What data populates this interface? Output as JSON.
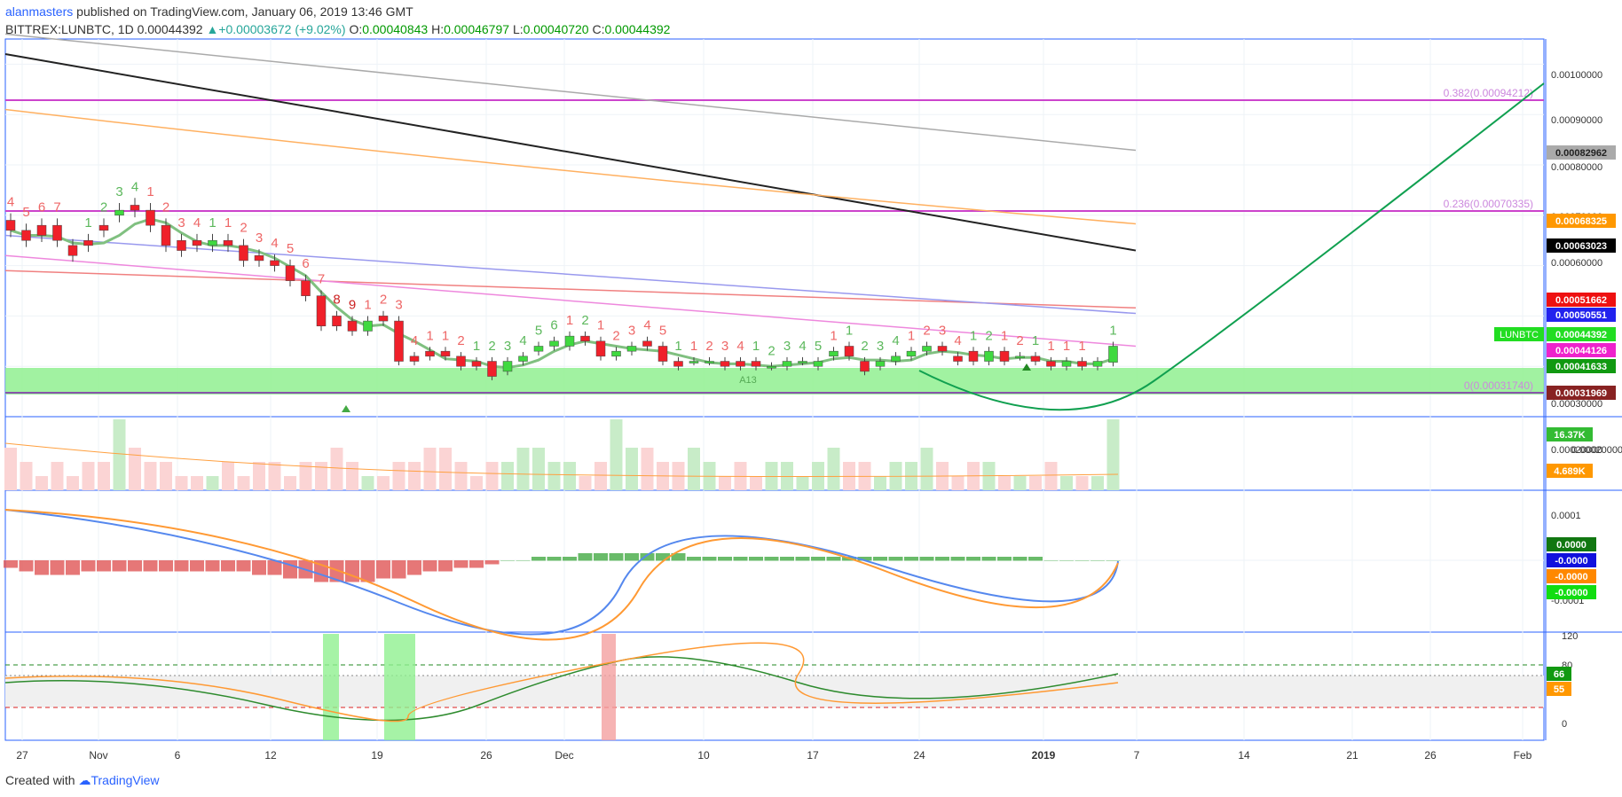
{
  "header": {
    "publisher_user": "alanmasters",
    "publisher_text": " published on TradingView.com, January 06, 2019 13:46 GMT",
    "symbol": "BITTREX:LUNBTC, 1D",
    "price": "0.00044392",
    "change": "+0.00003672 (+9.02%)",
    "o_label": "O:",
    "o_value": "0.00040843",
    "h_label": "H:",
    "h_value": "0.00046797",
    "l_label": "L:",
    "l_value": "0.00040720",
    "c_label": "C:",
    "c_value": "0.00044392"
  },
  "footer": {
    "created_with": "Created with",
    "brand": "TradingView"
  },
  "colors": {
    "up": "#3fd93f",
    "down": "#f0202a",
    "ma_green": "#80c080",
    "ma_orange": "#ffb060",
    "ma_black": "#222222",
    "ma_gray": "#aaaaaa",
    "ma_red": "#f08080",
    "fib": "#cc44cc",
    "support": "#90f090",
    "curve": "#10a050",
    "volume_up": "#c8ecc8",
    "volume_down": "#fbd4d4"
  },
  "chart_data": {
    "type": "candlestick",
    "x_tick_labels": [
      "27",
      "Nov",
      "6",
      "12",
      "19",
      "26",
      "Dec",
      "10",
      "17",
      "24",
      "2019",
      "7",
      "14",
      "21",
      "26",
      "Feb"
    ],
    "y_ticks": [
      "0.00100000",
      "0.00090000",
      "0.00080000",
      "0.00070000",
      "0.00060000",
      "0.00030000",
      "0.00020000"
    ],
    "ylim": [
      0.0003,
      0.00105
    ],
    "closes": [
      0.00067,
      0.00065,
      0.00066,
      0.00065,
      0.00062,
      0.00064,
      0.00067,
      0.00071,
      0.00071,
      0.00068,
      0.00064,
      0.00063,
      0.00064,
      0.00065,
      0.00064,
      0.00061,
      0.00061,
      0.0006,
      0.00057,
      0.00054,
      0.00048,
      0.00048,
      0.00047,
      0.00049,
      0.00049,
      0.00041,
      0.00041,
      0.00042,
      0.00042,
      0.0004,
      0.0004,
      0.00038,
      0.00041,
      0.00042,
      0.00044,
      0.00045,
      0.00046,
      0.00045,
      0.00042,
      0.00043,
      0.00044,
      0.00044,
      0.00041,
      0.0004,
      0.00041,
      0.00041,
      0.0004,
      0.0004,
      0.0004,
      0.0004,
      0.00041,
      0.00041,
      0.00041,
      0.00043,
      0.00042,
      0.00039,
      0.00041,
      0.00042,
      0.00043,
      0.00044,
      0.00043,
      0.00041,
      0.00041,
      0.00043,
      0.00041,
      0.00042,
      0.00041,
      0.0004,
      0.00041,
      0.0004,
      0.00041,
      0.00044
    ],
    "opens": [
      0.00069,
      0.00067,
      0.00068,
      0.00068,
      0.00064,
      0.00065,
      0.00068,
      0.0007,
      0.00072,
      0.00071,
      0.00068,
      0.00065,
      0.00065,
      0.00064,
      0.00065,
      0.00064,
      0.00062,
      0.00061,
      0.0006,
      0.00057,
      0.00054,
      0.0005,
      0.00049,
      0.00047,
      0.0005,
      0.00049,
      0.00042,
      0.00043,
      0.00043,
      0.00042,
      0.00041,
      0.00041,
      0.00039,
      0.00041,
      0.00043,
      0.00044,
      0.00044,
      0.00046,
      0.00045,
      0.00042,
      0.00043,
      0.00045,
      0.00044,
      0.00041,
      0.00041,
      0.00041,
      0.00041,
      0.00041,
      0.00041,
      0.0004,
      0.0004,
      0.00041,
      0.0004,
      0.00042,
      0.00044,
      0.00041,
      0.0004,
      0.00041,
      0.00042,
      0.00043,
      0.00044,
      0.00042,
      0.00043,
      0.00041,
      0.00043,
      0.00042,
      0.00042,
      0.00041,
      0.0004,
      0.00041,
      0.0004,
      0.000408
    ],
    "moving_averages": [
      {
        "color": "#aaaaaa",
        "start": 0.00106,
        "end": 0.000829
      },
      {
        "color": "#222222",
        "start": 0.00102,
        "end": 0.00063
      },
      {
        "color": "#ffb060",
        "start": 0.00091,
        "end": 0.000683
      },
      {
        "color": "#f08080",
        "start": 0.00059,
        "end": 0.000516
      },
      {
        "color": "#9999ee",
        "start": 0.00066,
        "end": 0.000505
      },
      {
        "color": "#ee88dd",
        "start": 0.00062,
        "end": 0.00044
      }
    ],
    "fib_levels": [
      {
        "label": "0.382(0.00094212)",
        "value": 0.00094212
      },
      {
        "label": "0.236(0.00070335)",
        "value": 0.00070335
      },
      {
        "label": "0(0.00031740)",
        "value": 0.0003174
      }
    ],
    "price_labels": [
      {
        "text": "0.00082962",
        "bg": "#aaaaaa",
        "fg": "#222222"
      },
      {
        "text": "0.00068325",
        "bg": "#ff9800",
        "fg": "#ffffff"
      },
      {
        "text": "0.00063023",
        "bg": "#000000",
        "fg": "#ffffff"
      },
      {
        "text": "0.00051662",
        "bg": "#ee1111",
        "fg": "#ffffff"
      },
      {
        "text": "0.00050551",
        "bg": "#2222ee",
        "fg": "#ffffff"
      },
      {
        "text": "0.00044392",
        "bg": "#22dd22",
        "fg": "#ffffff"
      },
      {
        "text": "0.00044126",
        "bg": "#ee22cc",
        "fg": "#ffffff"
      },
      {
        "text": "0.00041633",
        "bg": "#119911",
        "fg": "#ffffff"
      },
      {
        "text": "0.00031969",
        "bg": "#882222",
        "fg": "#ffffff"
      }
    ],
    "symbol_tag": "LUNBTC",
    "annotation": "A13",
    "td_counts": [
      {
        "i": 0,
        "t": "4",
        "c": "r",
        "above": true
      },
      {
        "i": 1,
        "t": "5",
        "c": "r",
        "above": true
      },
      {
        "i": 2,
        "t": "6",
        "c": "r",
        "above": true
      },
      {
        "i": 3,
        "t": "7",
        "c": "r",
        "above": true
      },
      {
        "i": 5,
        "t": "1",
        "c": "g",
        "above": true
      },
      {
        "i": 6,
        "t": "2",
        "c": "g",
        "above": true
      },
      {
        "i": 7,
        "t": "3",
        "c": "g",
        "above": true
      },
      {
        "i": 8,
        "t": "4",
        "c": "g",
        "above": true
      },
      {
        "i": 9,
        "t": "1",
        "c": "r",
        "above": true
      },
      {
        "i": 10,
        "t": "2",
        "c": "r",
        "above": true
      },
      {
        "i": 11,
        "t": "3",
        "c": "r",
        "above": true
      },
      {
        "i": 12,
        "t": "4",
        "c": "r",
        "above": true
      },
      {
        "i": 13,
        "t": "1",
        "c": "g",
        "above": true
      },
      {
        "i": 14,
        "t": "1",
        "c": "r",
        "above": true
      },
      {
        "i": 15,
        "t": "2",
        "c": "r",
        "above": true
      },
      {
        "i": 16,
        "t": "3",
        "c": "r",
        "above": true
      },
      {
        "i": 17,
        "t": "4",
        "c": "r",
        "above": true
      },
      {
        "i": 18,
        "t": "5",
        "c": "r",
        "above": true
      },
      {
        "i": 19,
        "t": "6",
        "c": "r",
        "above": true
      },
      {
        "i": 20,
        "t": "7",
        "c": "r",
        "above": true
      },
      {
        "i": 21,
        "t": "8",
        "c": "d",
        "above": true
      },
      {
        "i": 22,
        "t": "9",
        "c": "d",
        "above": true
      },
      {
        "i": 23,
        "t": "1",
        "c": "r",
        "above": true
      },
      {
        "i": 24,
        "t": "2",
        "c": "r",
        "above": true
      },
      {
        "i": 25,
        "t": "3",
        "c": "r",
        "above": true
      },
      {
        "i": 26,
        "t": "4",
        "c": "r",
        "above": true
      },
      {
        "i": 27,
        "t": "1",
        "c": "r",
        "above": true
      },
      {
        "i": 28,
        "t": "1",
        "c": "r",
        "above": true
      },
      {
        "i": 29,
        "t": "2",
        "c": "r",
        "above": true
      },
      {
        "i": 30,
        "t": "1",
        "c": "g",
        "above": true
      },
      {
        "i": 31,
        "t": "2",
        "c": "g",
        "above": true
      },
      {
        "i": 32,
        "t": "3",
        "c": "g",
        "above": true
      },
      {
        "i": 33,
        "t": "4",
        "c": "g",
        "above": true
      },
      {
        "i": 34,
        "t": "5",
        "c": "g",
        "above": true
      },
      {
        "i": 35,
        "t": "6",
        "c": "g",
        "above": true
      },
      {
        "i": 36,
        "t": "1",
        "c": "r",
        "above": true
      },
      {
        "i": 37,
        "t": "2",
        "c": "g",
        "above": true
      },
      {
        "i": 38,
        "t": "1",
        "c": "r",
        "above": true
      },
      {
        "i": 39,
        "t": "2",
        "c": "r",
        "above": true
      },
      {
        "i": 40,
        "t": "3",
        "c": "r",
        "above": true
      },
      {
        "i": 41,
        "t": "4",
        "c": "r",
        "above": true
      },
      {
        "i": 42,
        "t": "5",
        "c": "r",
        "above": true
      },
      {
        "i": 43,
        "t": "1",
        "c": "g",
        "above": true
      },
      {
        "i": 44,
        "t": "1",
        "c": "r",
        "above": true
      },
      {
        "i": 45,
        "t": "2",
        "c": "r",
        "above": true
      },
      {
        "i": 46,
        "t": "3",
        "c": "r",
        "above": true
      },
      {
        "i": 47,
        "t": "4",
        "c": "r",
        "above": true
      },
      {
        "i": 48,
        "t": "1",
        "c": "g",
        "above": true
      },
      {
        "i": 49,
        "t": "2",
        "c": "g",
        "above": true
      },
      {
        "i": 50,
        "t": "3",
        "c": "g",
        "above": true
      },
      {
        "i": 51,
        "t": "4",
        "c": "g",
        "above": true
      },
      {
        "i": 52,
        "t": "5",
        "c": "g",
        "above": true
      },
      {
        "i": 53,
        "t": "1",
        "c": "r",
        "above": true
      },
      {
        "i": 54,
        "t": "1",
        "c": "g",
        "above": true
      },
      {
        "i": 55,
        "t": "2",
        "c": "g",
        "above": true
      },
      {
        "i": 56,
        "t": "3",
        "c": "g",
        "above": true
      },
      {
        "i": 57,
        "t": "4",
        "c": "g",
        "above": true
      },
      {
        "i": 58,
        "t": "1",
        "c": "r",
        "above": true
      },
      {
        "i": 59,
        "t": "2",
        "c": "r",
        "above": true
      },
      {
        "i": 60,
        "t": "3",
        "c": "r",
        "above": true
      },
      {
        "i": 61,
        "t": "4",
        "c": "r",
        "above": true
      },
      {
        "i": 62,
        "t": "1",
        "c": "g",
        "above": true
      },
      {
        "i": 63,
        "t": "2",
        "c": "g",
        "above": true
      },
      {
        "i": 64,
        "t": "1",
        "c": "r",
        "above": true
      },
      {
        "i": 65,
        "t": "2",
        "c": "r",
        "above": true
      },
      {
        "i": 66,
        "t": "1",
        "c": "g",
        "above": true
      },
      {
        "i": 67,
        "t": "1",
        "c": "r",
        "above": true
      },
      {
        "i": 68,
        "t": "1",
        "c": "r",
        "above": true
      },
      {
        "i": 69,
        "t": "1",
        "c": "r",
        "above": true
      },
      {
        "i": 71,
        "t": "1",
        "c": "g",
        "above": true
      }
    ],
    "volume_tick_labels": [
      "16.37K",
      "4.689K"
    ],
    "volumes": [
      3,
      2,
      1,
      2,
      1,
      2,
      2,
      5,
      3,
      2,
      2,
      1,
      1,
      1,
      2,
      1,
      2,
      2,
      1,
      2,
      2,
      3,
      2,
      1,
      1,
      2,
      2,
      3,
      3,
      2,
      1,
      2,
      2,
      3,
      3,
      2,
      2,
      1,
      2,
      5,
      3,
      3,
      2,
      2,
      3,
      2,
      1,
      2,
      1,
      2,
      2,
      1,
      2,
      3,
      2,
      2,
      1,
      2,
      2,
      3,
      2,
      1,
      2,
      2,
      1,
      1,
      1,
      2,
      1,
      1,
      1,
      5
    ],
    "macd_ticks": [
      "0.0001",
      "-0.0001"
    ],
    "macd_labels": [
      {
        "text": "0.0000",
        "bg": "#117711"
      },
      {
        "text": "-0.0000",
        "bg": "#1111dd"
      },
      {
        "text": "-0.0000",
        "bg": "#ff8800"
      },
      {
        "text": "-0.0000",
        "bg": "#11dd11"
      }
    ],
    "macd_hist": [
      -2,
      -3,
      -4,
      -4,
      -4,
      -3,
      -3,
      -3,
      -3,
      -3,
      -3,
      -3,
      -3,
      -3,
      -3,
      -3,
      -4,
      -4,
      -5,
      -5,
      -6,
      -6,
      -6,
      -6,
      -5,
      -5,
      -4,
      -3,
      -3,
      -2,
      -2,
      -1,
      0,
      0,
      1,
      1,
      1,
      2,
      2,
      2,
      2,
      2,
      2,
      2,
      1,
      1,
      1,
      1,
      1,
      1,
      1,
      1,
      1,
      1,
      1,
      1,
      1,
      1,
      1,
      1,
      1,
      1,
      1,
      1,
      1,
      1,
      1,
      0,
      0,
      0,
      0,
      0
    ],
    "rsi_ticks": [
      "120",
      "80",
      "0"
    ],
    "rsi_labels": [
      {
        "text": "66",
        "bg": "#119911"
      },
      {
        "text": "55",
        "bg": "#ff9800"
      }
    ]
  }
}
